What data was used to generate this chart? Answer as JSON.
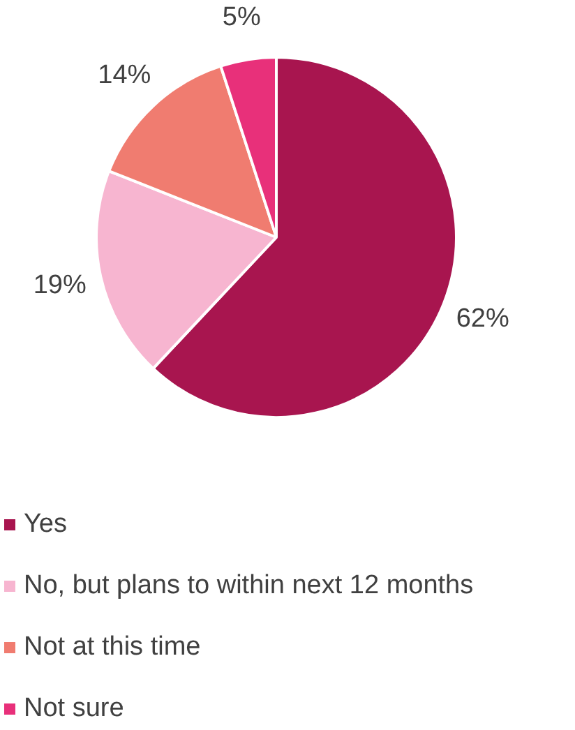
{
  "chart_data": {
    "type": "pie",
    "categories": [
      "Yes",
      "No, but plans to within next 12 months",
      "Not at this time",
      "Not sure"
    ],
    "values": [
      62,
      19,
      14,
      5
    ],
    "colors": [
      "#a8154f",
      "#f7b5d0",
      "#f07c70",
      "#e8307a"
    ],
    "value_labels": [
      "62%",
      "19%",
      "14%",
      "5%"
    ],
    "legend": "bottom"
  }
}
